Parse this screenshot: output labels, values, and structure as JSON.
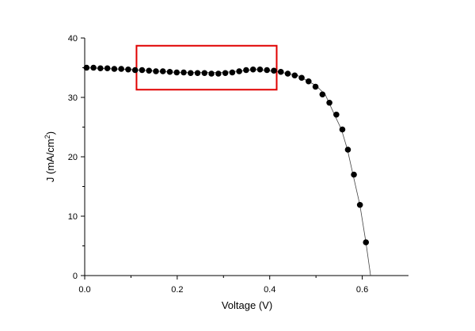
{
  "chart_data": {
    "type": "scatter",
    "title": "",
    "xlabel": "Voltage (V)",
    "ylabel_main": "J (mA/cm",
    "ylabel_sup": "2",
    "ylabel_end": ")",
    "xlim": [
      0.0,
      0.7
    ],
    "ylim": [
      0,
      40
    ],
    "x_ticks": [
      0.0,
      0.2,
      0.4,
      0.6
    ],
    "x_tick_labels": [
      "0.0",
      "0.2",
      "0.4",
      "0.6"
    ],
    "y_ticks": [
      0,
      10,
      20,
      30,
      40
    ],
    "y_tick_labels": [
      "0",
      "10",
      "20",
      "30",
      "40"
    ],
    "grid": false,
    "legend": "none",
    "marker_color": "#000000",
    "highlight_box": {
      "x_range": [
        0.112,
        0.415
      ],
      "y_range": [
        31.3,
        38.7
      ],
      "color": "#e00000"
    },
    "fit_curve": [
      {
        "x": 0.0,
        "y": 35.0
      },
      {
        "x": 0.1,
        "y": 34.7
      },
      {
        "x": 0.2,
        "y": 34.2
      },
      {
        "x": 0.3,
        "y": 34.2
      },
      {
        "x": 0.37,
        "y": 34.7
      },
      {
        "x": 0.42,
        "y": 34.3
      },
      {
        "x": 0.46,
        "y": 33.7
      },
      {
        "x": 0.5,
        "y": 32.0
      },
      {
        "x": 0.52,
        "y": 30.5
      },
      {
        "x": 0.54,
        "y": 27.1
      },
      {
        "x": 0.555,
        "y": 24.6
      },
      {
        "x": 0.568,
        "y": 21.2
      },
      {
        "x": 0.58,
        "y": 17.0
      },
      {
        "x": 0.595,
        "y": 11.9
      },
      {
        "x": 0.608,
        "y": 5.6
      },
      {
        "x": 0.618,
        "y": 0.0
      }
    ],
    "series": [
      {
        "x": [
          0.004,
          0.019,
          0.034,
          0.049,
          0.064,
          0.079,
          0.094,
          0.109,
          0.124,
          0.139,
          0.154,
          0.169,
          0.184,
          0.199,
          0.214,
          0.229,
          0.244,
          0.259,
          0.274,
          0.289,
          0.304,
          0.319,
          0.334,
          0.349,
          0.364,
          0.379,
          0.394,
          0.409,
          0.424,
          0.439,
          0.454,
          0.469,
          0.484,
          0.499,
          0.514,
          0.529,
          0.544,
          0.557,
          0.569,
          0.582,
          0.595,
          0.608
        ],
        "y": [
          35.0,
          35.0,
          34.9,
          34.9,
          34.8,
          34.8,
          34.7,
          34.6,
          34.6,
          34.5,
          34.4,
          34.4,
          34.3,
          34.2,
          34.2,
          34.1,
          34.1,
          34.1,
          34.0,
          34.0,
          34.1,
          34.2,
          34.4,
          34.6,
          34.7,
          34.7,
          34.6,
          34.5,
          34.3,
          34.0,
          33.7,
          33.3,
          32.7,
          31.8,
          30.5,
          29.1,
          27.1,
          24.6,
          21.2,
          17.0,
          11.9,
          5.6
        ]
      }
    ]
  }
}
